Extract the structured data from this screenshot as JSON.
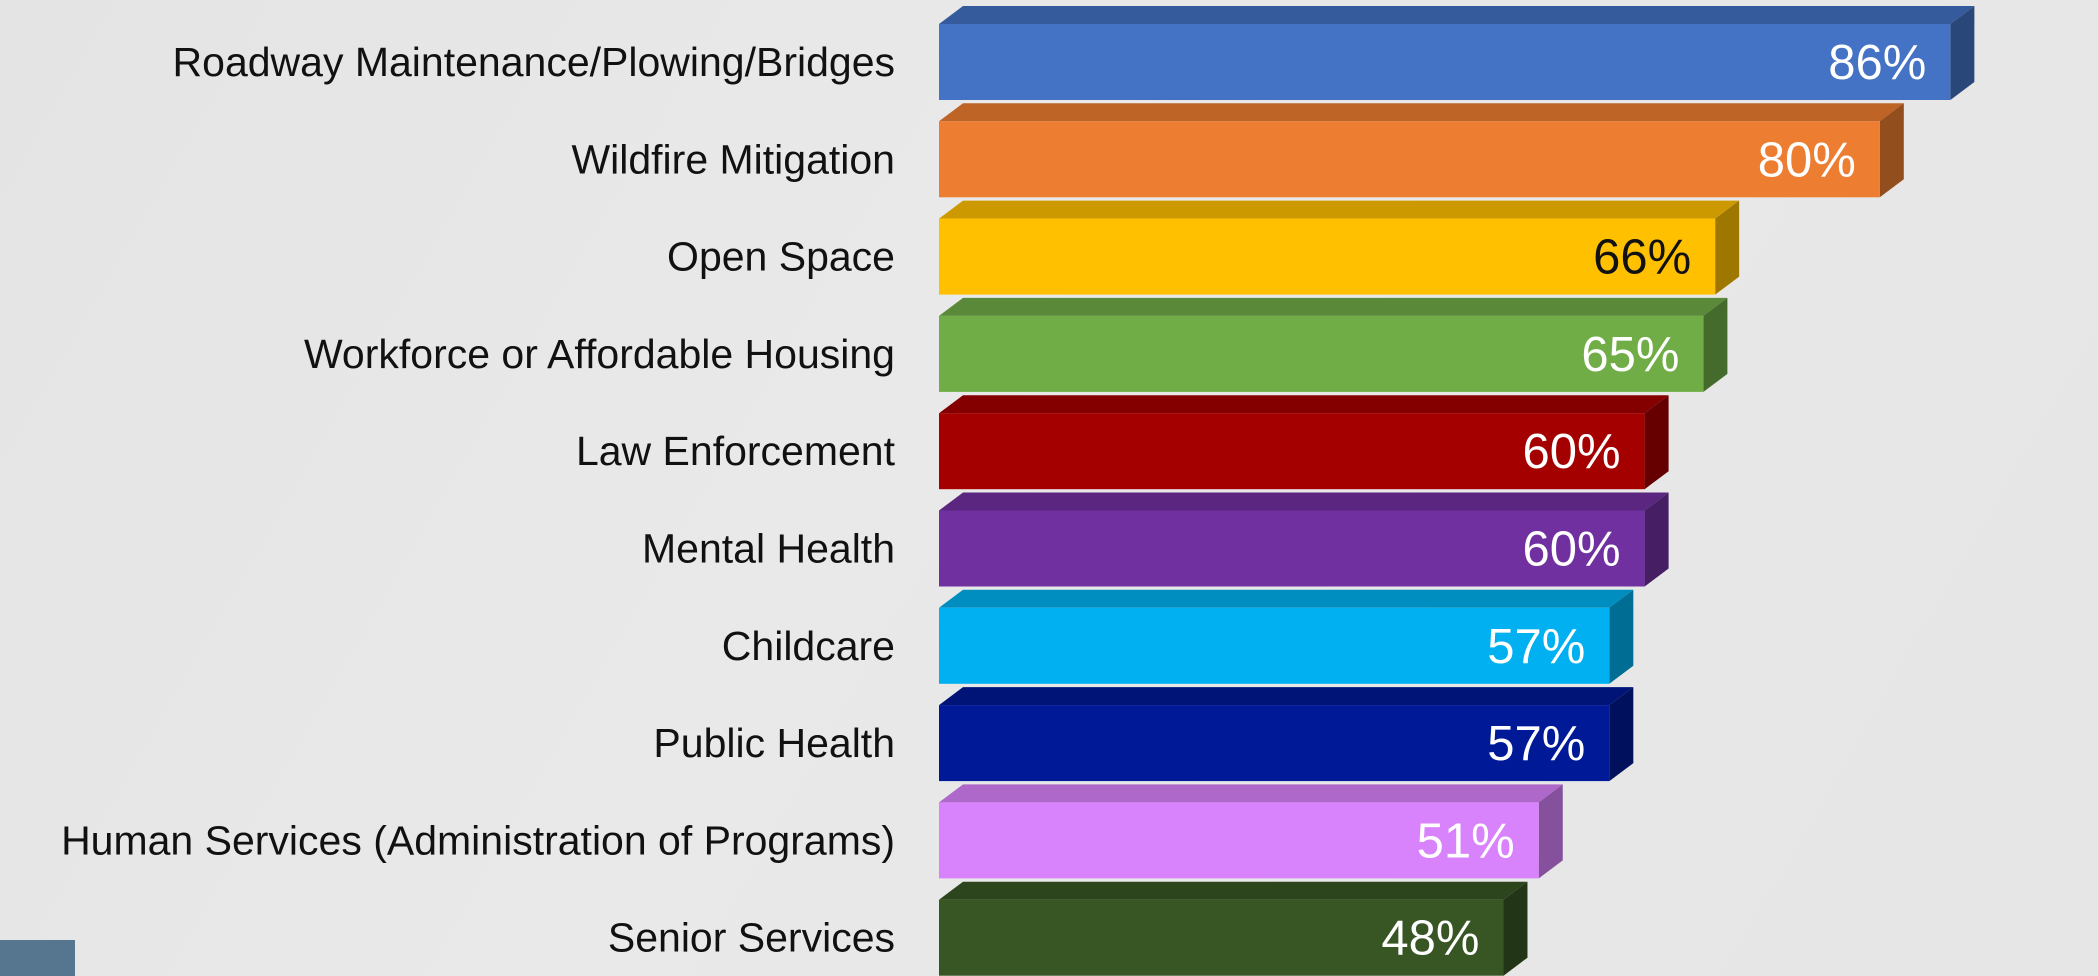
{
  "chart_data": {
    "type": "bar",
    "orientation": "horizontal",
    "style": "3d",
    "categories": [
      "Roadway Maintenance/Plowing/Bridges",
      "Wildfire Mitigation",
      "Open Space",
      "Workforce or Affordable Housing",
      "Law Enforcement",
      "Mental Health",
      "Childcare",
      "Public Health",
      "Human Services (Administration of Programs)",
      "Senior Services"
    ],
    "values": [
      86,
      80,
      66,
      65,
      60,
      60,
      57,
      57,
      51,
      48
    ],
    "value_labels": [
      "86%",
      "80%",
      "66%",
      "65%",
      "60%",
      "60%",
      "57%",
      "57%",
      "51%",
      "48%"
    ],
    "colors": [
      "#4472c4",
      "#ed7d31",
      "#ffc000",
      "#70ad47",
      "#a50000",
      "#7030a0",
      "#00b0f0",
      "#001996",
      "#d882fc",
      "#375623"
    ],
    "label_colors": [
      "#ffffff",
      "#ffffff",
      "#111111",
      "#ffffff",
      "#ffffff",
      "#ffffff",
      "#ffffff",
      "#ffffff",
      "#ffffff",
      "#ffffff"
    ],
    "xlim": [
      0,
      100
    ],
    "grid": false,
    "legend": "none",
    "title": "",
    "xlabel": "",
    "ylabel": ""
  },
  "colors": {
    "background": "#e6e6e6",
    "corner_tab": "#56768f"
  }
}
